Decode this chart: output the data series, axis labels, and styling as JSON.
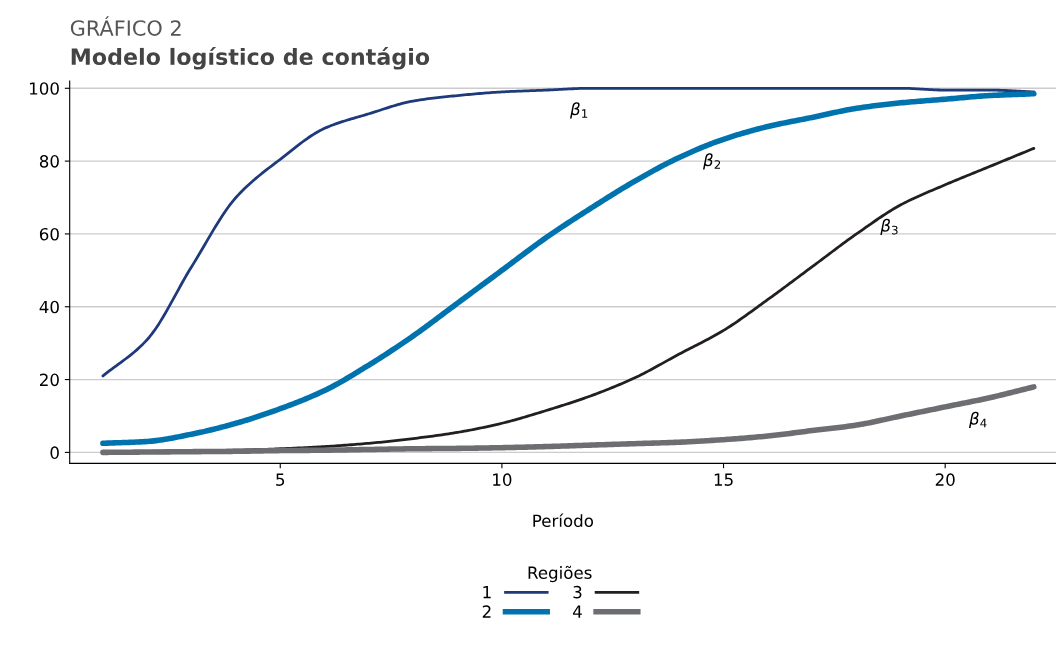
{
  "chart_data": {
    "type": "line",
    "title": "GRÁFICO 2",
    "subtitle": "Modelo logístico de contágio",
    "xlabel": "Período",
    "legend_title": "Regiões",
    "x": [
      1,
      2,
      3,
      4,
      5,
      6,
      7,
      8,
      9,
      10,
      11,
      12,
      13,
      14,
      15,
      16,
      17,
      18,
      19,
      20,
      21,
      22
    ],
    "series": [
      {
        "name": "1",
        "color": "#1f3a7a",
        "values": [
          21,
          31,
          51,
          70,
          80.5,
          89,
          93,
          96.5,
          98,
          99,
          99.5,
          100,
          100,
          100,
          100,
          100,
          100,
          100,
          100,
          99.5,
          99.5,
          99
        ]
      },
      {
        "name": "2",
        "color": "#0073ae",
        "values": [
          2.5,
          3,
          5,
          8,
          12,
          17,
          24,
          32,
          41,
          50,
          59,
          67,
          74.5,
          81,
          86,
          89.5,
          92,
          94.5,
          96,
          97,
          98,
          98.5
        ]
      },
      {
        "name": "3",
        "color": "#231f20",
        "values": [
          0.2,
          0.3,
          0.4,
          0.6,
          1,
          1.6,
          2.5,
          3.8,
          5.5,
          8,
          11.5,
          15.5,
          20.5,
          27,
          33.5,
          42,
          51,
          60,
          68,
          73.5,
          78.5,
          83.5
        ]
      },
      {
        "name": "4",
        "color": "#6d6e71",
        "values": [
          0,
          0.1,
          0.2,
          0.3,
          0.5,
          0.6,
          0.8,
          1,
          1.1,
          1.3,
          1.6,
          2,
          2.4,
          2.8,
          3.5,
          4.5,
          6,
          7.5,
          10,
          12.5,
          15,
          18
        ]
      }
    ],
    "annotations": [
      "β$_{1}$",
      "β$_{2}$",
      "β$_{3}$",
      "β$_{4}$"
    ],
    "xlim": [
      0.25,
      22.5
    ],
    "xticks": [
      5,
      10,
      15,
      20
    ],
    "ylim": [
      -3,
      102
    ],
    "yticks": [
      0,
      20,
      40,
      60,
      80,
      100
    ],
    "grid": "y",
    "legend": "bottom"
  }
}
